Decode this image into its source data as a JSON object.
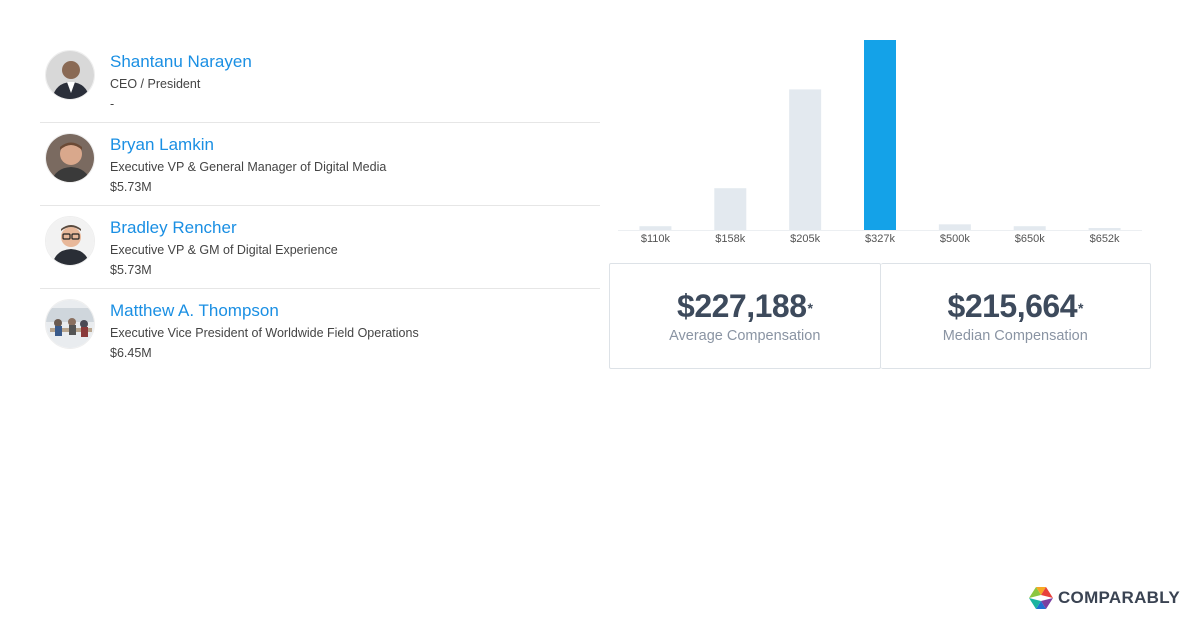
{
  "people": [
    {
      "name": "Shantanu Narayen",
      "title": "CEO / President",
      "comp": "-",
      "avatar": "person-photo"
    },
    {
      "name": "Bryan Lamkin",
      "title": "Executive VP & General Manager of Digital Media",
      "comp": "$5.73M",
      "avatar": "person-photo"
    },
    {
      "name": "Bradley Rencher",
      "title": "Executive VP & GM of Digital Experience",
      "comp": "$5.73M",
      "avatar": "person-photo"
    },
    {
      "name": "Matthew A. Thompson",
      "title": "Executive Vice President of Worldwide Field Operations",
      "comp": "$6.45M",
      "avatar": "office-photo"
    }
  ],
  "chart_data": {
    "type": "bar",
    "categories": [
      "$110k",
      "$158k",
      "$205k",
      "$327k",
      "$500k",
      "$650k",
      "$652k"
    ],
    "values": [
      2,
      22,
      74,
      100,
      3,
      2,
      0.5
    ],
    "highlight_index": 3,
    "colors": {
      "bar": "#e3e9ef",
      "highlight": "#14a2e8"
    },
    "ylim": [
      0,
      100
    ]
  },
  "stats": {
    "average": {
      "value": "$227,188",
      "mark": "*",
      "label": "Average Compensation"
    },
    "median": {
      "value": "$215,664",
      "mark": "*",
      "label": "Median Compensation"
    }
  },
  "brand": {
    "name": "COMPARABLY"
  }
}
